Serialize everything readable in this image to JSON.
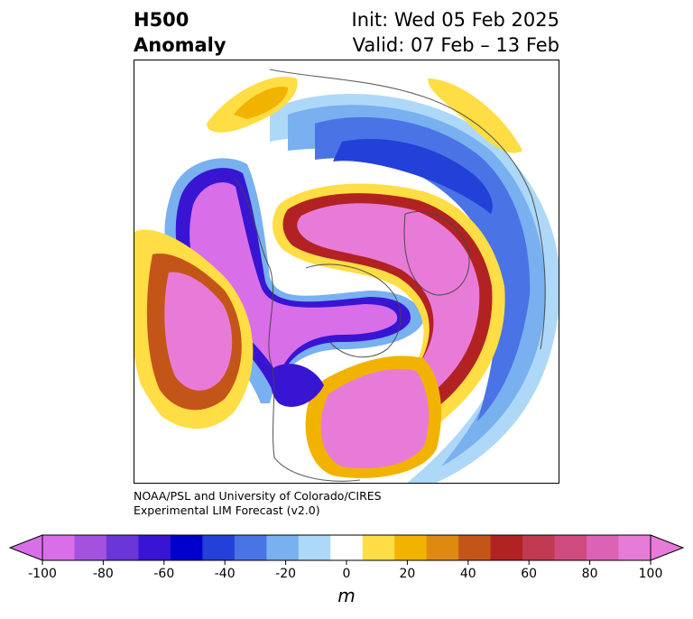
{
  "header": {
    "left_line1": "H500",
    "left_line2": "Anomaly",
    "right_line1": "Init: Wed 05 Feb 2025",
    "right_line2": "Valid: 07 Feb – 13 Feb"
  },
  "credit": {
    "line1": "NOAA/PSL and University of Colorado/CIRES",
    "line2": "Experimental LIM Forecast (v2.0)"
  },
  "colorbar": {
    "unit": "m",
    "ticks": [
      "-100",
      "-80",
      "-60",
      "-40",
      "-20",
      "0",
      "20",
      "40",
      "60",
      "80",
      "100"
    ],
    "colors": [
      "#d86fe8",
      "#a352e0",
      "#6a35d9",
      "#3815d3",
      "#0000cc",
      "#2340d9",
      "#4a73e6",
      "#78b0f0",
      "#aed8f7",
      "#ffffff",
      "#ffdd44",
      "#f2b300",
      "#de8a10",
      "#c45518",
      "#b22222",
      "#c23a52",
      "#cf4a7e",
      "#dc62b6",
      "#e97bd8"
    ],
    "under_color": "#d86fe8",
    "over_color": "#e97bd8"
  }
}
